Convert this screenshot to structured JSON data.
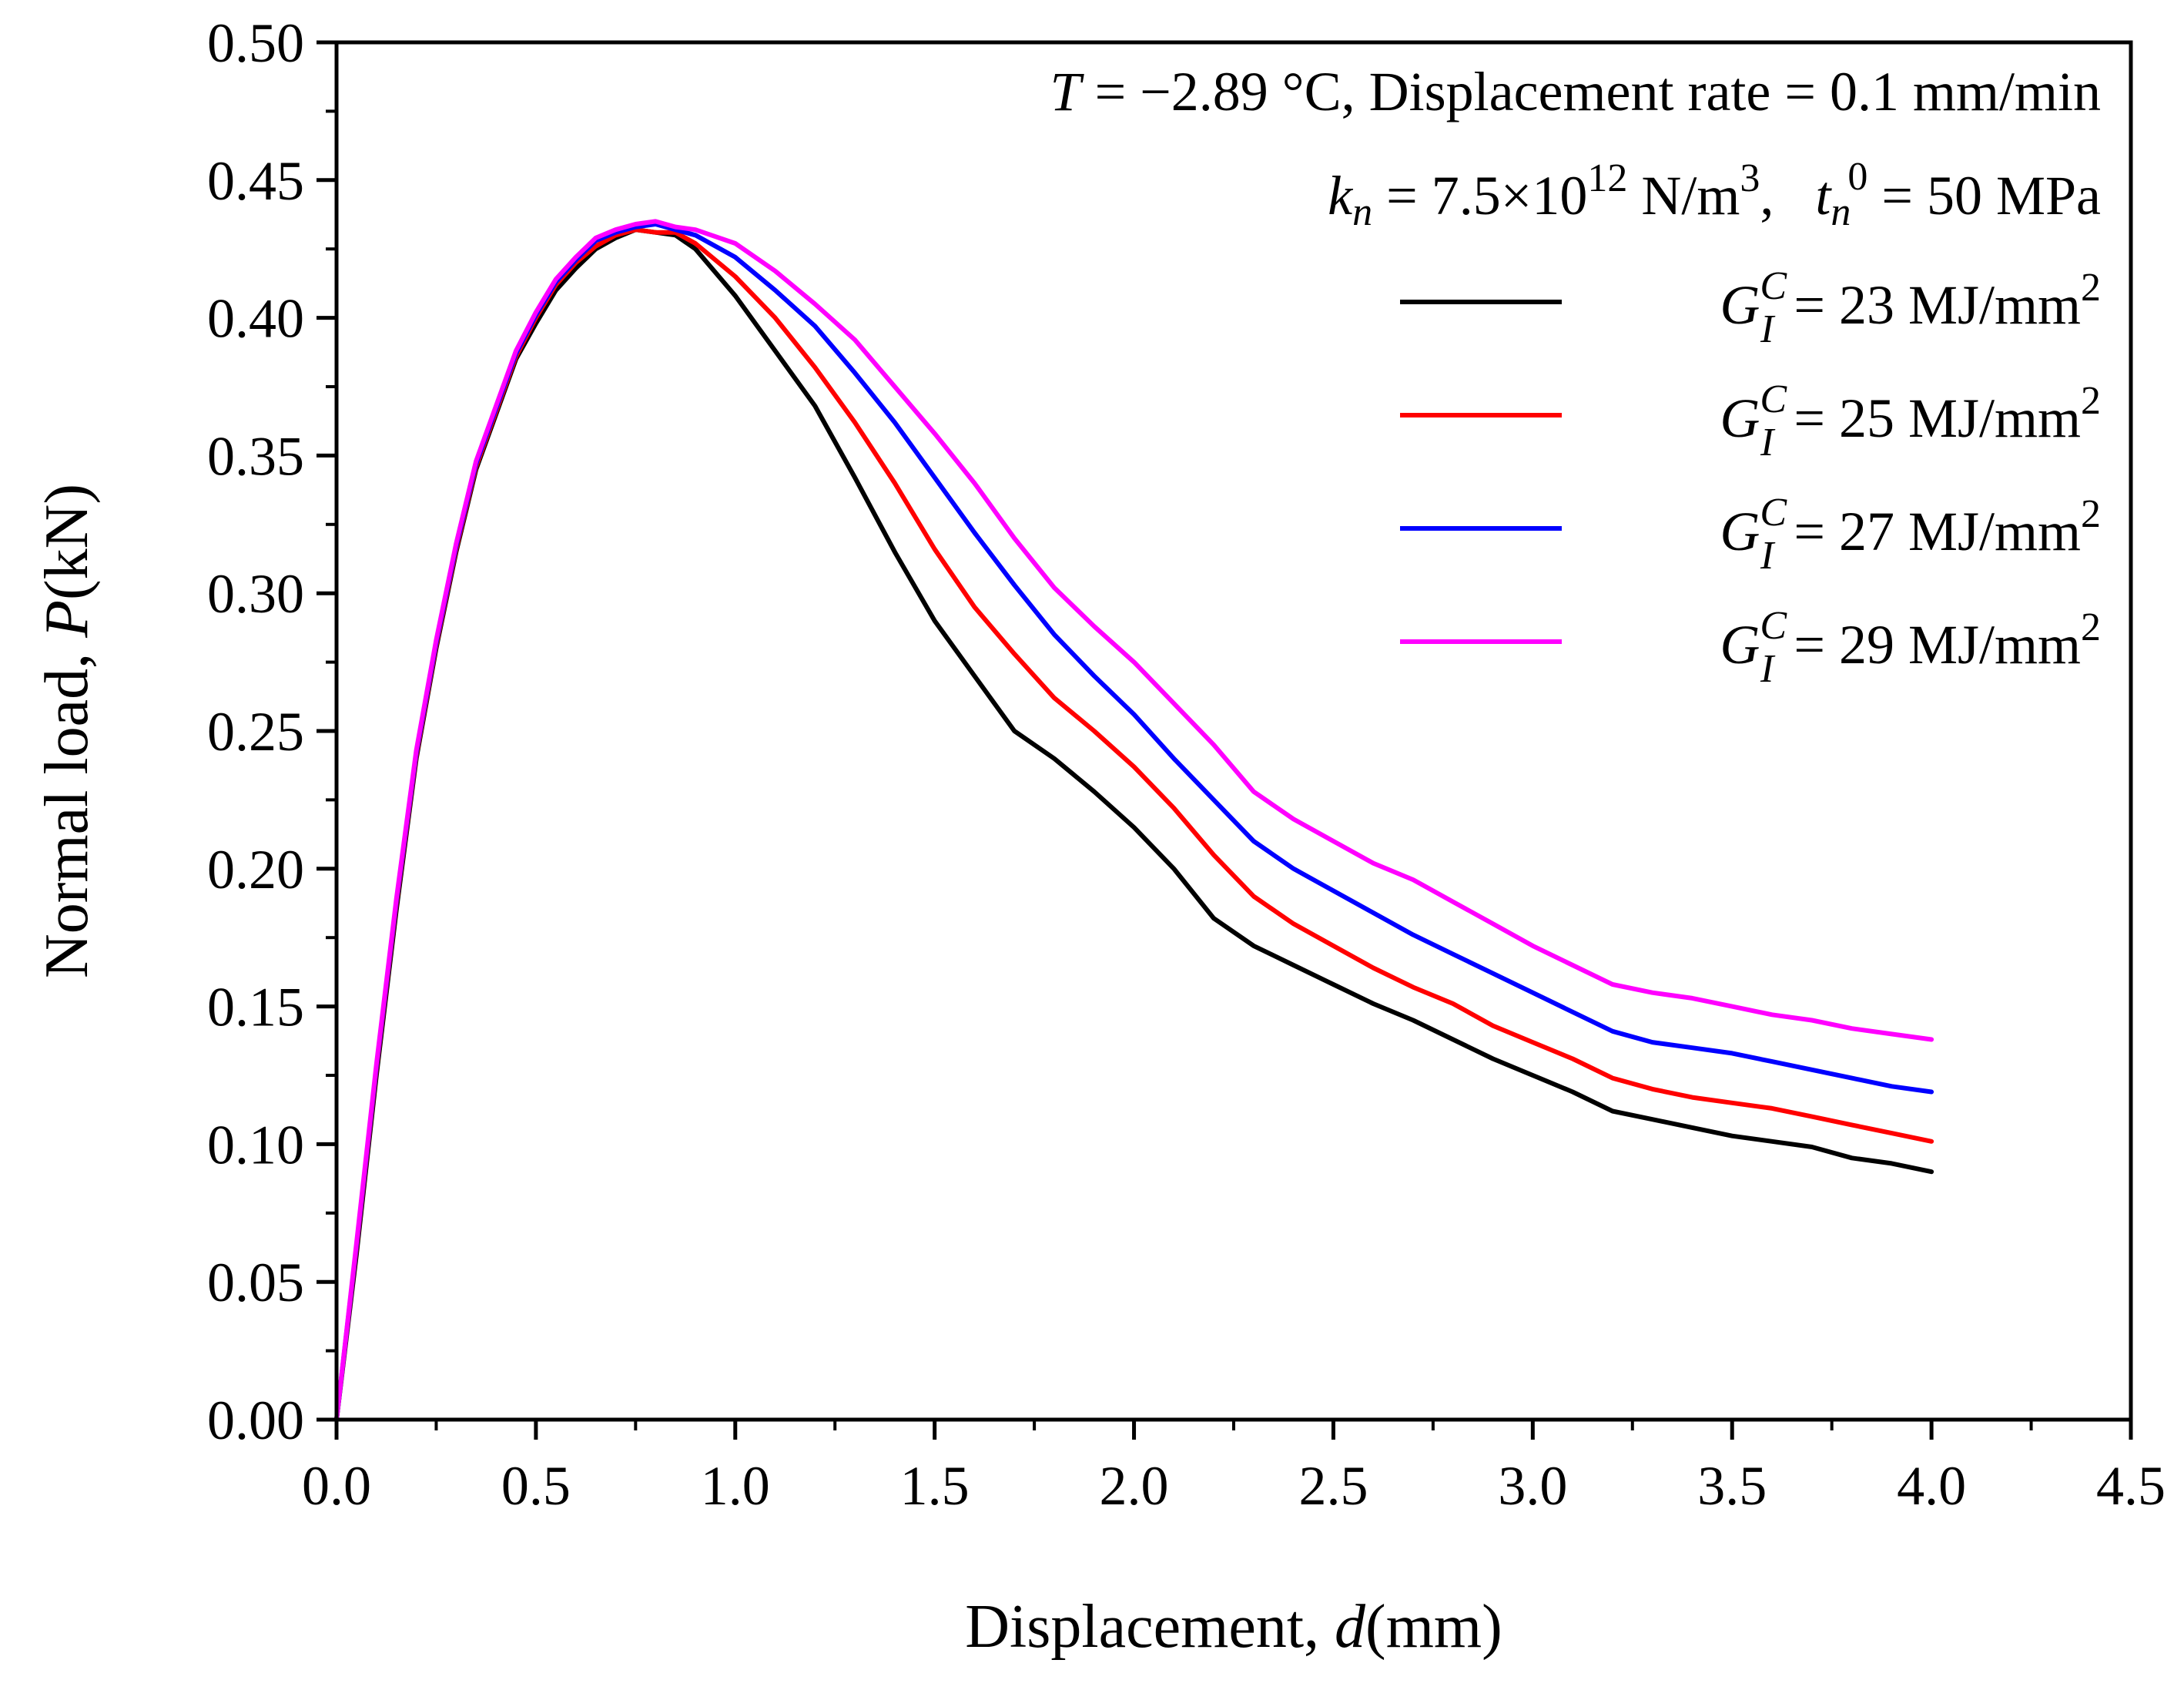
{
  "chart_data": {
    "type": "line",
    "xlabel": {
      "prefix": "Displacement, ",
      "var": "d",
      "suffix": "(mm)"
    },
    "ylabel": {
      "prefix": "Normal load, ",
      "var": "P",
      "suffix": "(kN)"
    },
    "xlim": [
      0,
      4.5
    ],
    "ylim": [
      0,
      0.5
    ],
    "x_ticks": [
      "0.0",
      "0.5",
      "1.0",
      "1.5",
      "2.0",
      "2.5",
      "3.0",
      "3.5",
      "4.0",
      "4.5"
    ],
    "y_ticks": [
      "0.00",
      "0.05",
      "0.10",
      "0.15",
      "0.20",
      "0.25",
      "0.30",
      "0.35",
      "0.40",
      "0.45",
      "0.50"
    ],
    "grid": false,
    "legend_position": "top-right",
    "annotations": {
      "line1": {
        "t_var": "T",
        "rest": " = −2.89 °C, Displacement rate = 0.1 mm/min"
      },
      "line2": {
        "k": "k",
        "k_sub": "n",
        "k_rest": " = 7.5×10",
        "k_exp": "12",
        "k_unit": " N/m",
        "k_unit_exp": "3",
        "sep": ",   ",
        "t": "t",
        "t_sub": "n",
        "t_sup": "0",
        "t_rest": " = 50 MPa"
      }
    },
    "x": [
      0.0,
      0.05,
      0.1,
      0.15,
      0.2,
      0.25,
      0.3,
      0.35,
      0.4,
      0.45,
      0.5,
      0.55,
      0.6,
      0.65,
      0.7,
      0.75,
      0.8,
      0.85,
      0.9,
      1.0,
      1.1,
      1.2,
      1.3,
      1.4,
      1.5,
      1.6,
      1.7,
      1.8,
      1.9,
      2.0,
      2.1,
      2.2,
      2.3,
      2.4,
      2.5,
      2.6,
      2.7,
      2.8,
      2.9,
      3.0,
      3.1,
      3.2,
      3.3,
      3.4,
      3.5,
      3.6,
      3.7,
      3.8,
      3.9,
      4.0
    ],
    "series": [
      {
        "name": "G_I^C = 23 MJ/mm2",
        "legend": {
          "g": "G",
          "sub": "I",
          "sup": "C",
          "rest": " = 23 MJ/mm",
          "exp": "2"
        },
        "color": "#000000",
        "values": [
          0.0,
          0.06,
          0.125,
          0.185,
          0.24,
          0.28,
          0.315,
          0.345,
          0.365,
          0.385,
          0.398,
          0.41,
          0.418,
          0.425,
          0.429,
          0.432,
          0.431,
          0.43,
          0.425,
          0.408,
          0.388,
          0.368,
          0.342,
          0.315,
          0.29,
          0.27,
          0.25,
          0.24,
          0.228,
          0.215,
          0.2,
          0.182,
          0.172,
          0.165,
          0.158,
          0.151,
          0.145,
          0.138,
          0.131,
          0.125,
          0.119,
          0.112,
          0.109,
          0.106,
          0.103,
          0.101,
          0.099,
          0.095,
          0.093,
          0.09
        ]
      },
      {
        "name": "G_I^C = 25 MJ/mm2",
        "legend": {
          "g": "G",
          "sub": "I",
          "sup": "C",
          "rest": " = 25 MJ/mm",
          "exp": "2"
        },
        "color": "#ff0000",
        "values": [
          0.0,
          0.062,
          0.127,
          0.187,
          0.241,
          0.281,
          0.316,
          0.346,
          0.366,
          0.386,
          0.4,
          0.412,
          0.42,
          0.426,
          0.43,
          0.432,
          0.431,
          0.431,
          0.427,
          0.415,
          0.4,
          0.382,
          0.362,
          0.34,
          0.316,
          0.295,
          0.278,
          0.262,
          0.25,
          0.237,
          0.222,
          0.205,
          0.19,
          0.18,
          0.172,
          0.164,
          0.157,
          0.151,
          0.143,
          0.137,
          0.131,
          0.124,
          0.12,
          0.117,
          0.115,
          0.113,
          0.11,
          0.107,
          0.104,
          0.101
        ]
      },
      {
        "name": "G_I^C = 27 MJ/mm2",
        "legend": {
          "g": "G",
          "sub": "I",
          "sup": "C",
          "rest": " = 27 MJ/mm",
          "exp": "2"
        },
        "color": "#0000ff",
        "values": [
          0.0,
          0.063,
          0.128,
          0.188,
          0.242,
          0.282,
          0.317,
          0.347,
          0.367,
          0.387,
          0.401,
          0.413,
          0.421,
          0.428,
          0.431,
          0.433,
          0.434,
          0.432,
          0.43,
          0.422,
          0.41,
          0.397,
          0.38,
          0.362,
          0.342,
          0.322,
          0.303,
          0.285,
          0.27,
          0.256,
          0.24,
          0.225,
          0.21,
          0.2,
          0.192,
          0.184,
          0.176,
          0.169,
          0.162,
          0.155,
          0.148,
          0.141,
          0.137,
          0.135,
          0.133,
          0.13,
          0.127,
          0.124,
          0.121,
          0.119
        ]
      },
      {
        "name": "G_I^C = 29 MJ/mm2",
        "legend": {
          "g": "G",
          "sub": "I",
          "sup": "C",
          "rest": " = 29 MJ/mm",
          "exp": "2"
        },
        "color": "#ff00ff",
        "values": [
          0.0,
          0.064,
          0.129,
          0.189,
          0.243,
          0.283,
          0.318,
          0.348,
          0.368,
          0.388,
          0.402,
          0.414,
          0.422,
          0.429,
          0.432,
          0.434,
          0.435,
          0.433,
          0.432,
          0.427,
          0.417,
          0.405,
          0.392,
          0.375,
          0.358,
          0.34,
          0.32,
          0.302,
          0.288,
          0.275,
          0.26,
          0.245,
          0.228,
          0.218,
          0.21,
          0.202,
          0.196,
          0.188,
          0.18,
          0.172,
          0.165,
          0.158,
          0.155,
          0.153,
          0.15,
          0.147,
          0.145,
          0.142,
          0.14,
          0.138
        ]
      }
    ]
  }
}
